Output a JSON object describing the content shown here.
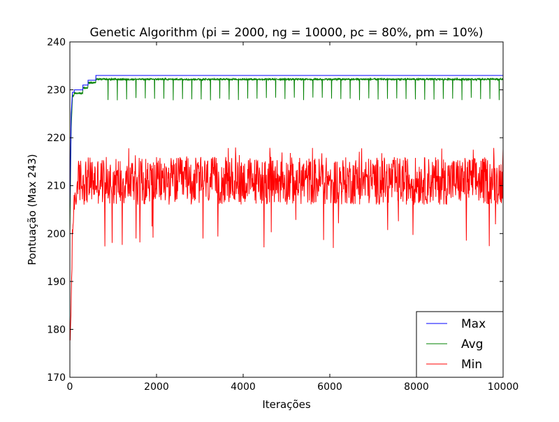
{
  "chart_data": {
    "type": "line",
    "title": "Genetic Algorithm (pi = 2000, ng = 10000, pc = 80%, pm = 10%)",
    "xlabel": "Iterações",
    "ylabel": "Pontuação (Max 243)",
    "xlim": [
      0,
      10000
    ],
    "ylim": [
      170,
      240
    ],
    "xticks": [
      0,
      2000,
      4000,
      6000,
      8000,
      10000
    ],
    "yticks": [
      170,
      180,
      190,
      200,
      210,
      220,
      230,
      240
    ],
    "grid": false,
    "legend": {
      "placement": "lower-right"
    },
    "series": [
      {
        "name": "Max",
        "color": "#0000ff",
        "style": "step",
        "x": [
          0,
          30,
          60,
          100,
          300,
          420,
          600,
          10000
        ],
        "y": [
          205,
          225,
          229.5,
          230,
          231,
          232,
          233,
          233
        ]
      },
      {
        "name": "Avg",
        "color": "#008000",
        "style": "noisy",
        "x": [
          0,
          30,
          60,
          100,
          300,
          420,
          600,
          10000
        ],
        "y": [
          200,
          222,
          228.7,
          229.3,
          230.4,
          231.5,
          232.2,
          232.2
        ],
        "dips": {
          "start": 880,
          "step": 215,
          "end": 9950,
          "low": 227.8,
          "note_values": [
            228,
            228,
            227.8
          ]
        }
      },
      {
        "name": "Min",
        "color": "#ff0000",
        "style": "noisy",
        "x": [
          0,
          20,
          40,
          60,
          100,
          200,
          10000
        ],
        "y": [
          175,
          182,
          190,
          200,
          207,
          211,
          211
        ],
        "band": [
          206,
          216
        ],
        "extremes": {
          "high": 218,
          "low": 197
        }
      }
    ]
  }
}
